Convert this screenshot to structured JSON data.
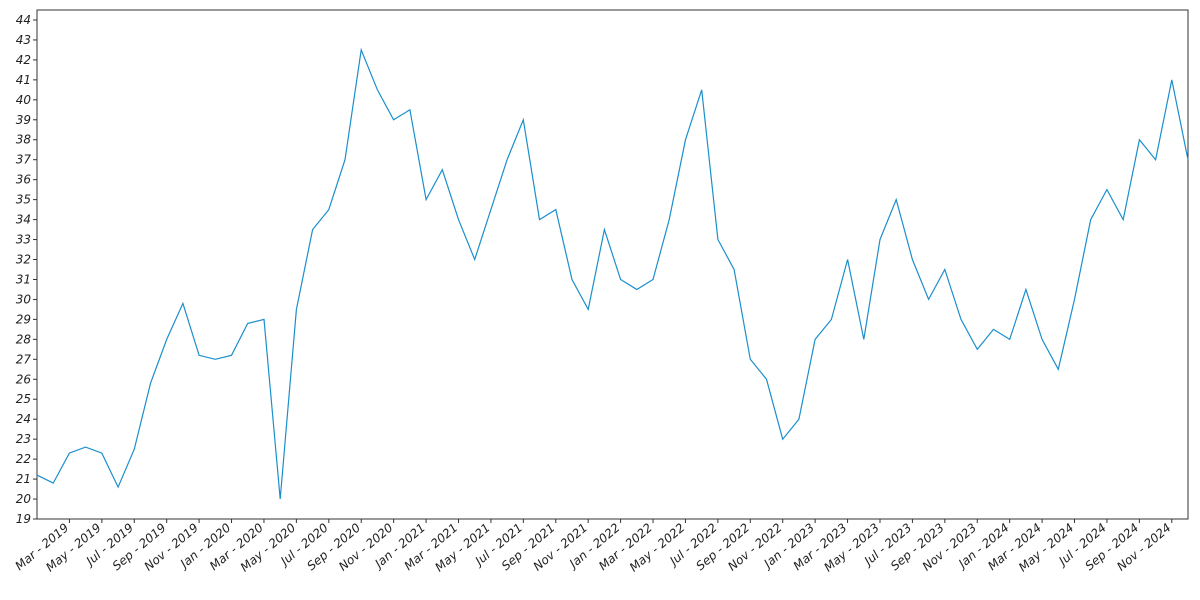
{
  "chart_data": {
    "type": "line",
    "x": [
      "2019-01",
      "2019-02",
      "2019-03",
      "2019-04",
      "2019-05",
      "2019-06",
      "2019-07",
      "2019-08",
      "2019-09",
      "2019-10",
      "2019-11",
      "2019-12",
      "2020-01",
      "2020-02",
      "2020-03",
      "2020-04",
      "2020-05",
      "2020-06",
      "2020-07",
      "2020-08",
      "2020-09",
      "2020-10",
      "2020-11",
      "2020-12",
      "2021-01",
      "2021-02",
      "2021-03",
      "2021-04",
      "2021-05",
      "2021-06",
      "2021-07",
      "2021-08",
      "2021-09",
      "2021-10",
      "2021-11",
      "2021-12",
      "2022-01",
      "2022-02",
      "2022-03",
      "2022-04",
      "2022-05",
      "2022-06",
      "2022-07",
      "2022-08",
      "2022-09",
      "2022-10",
      "2022-11",
      "2022-12",
      "2023-01",
      "2023-02",
      "2023-03",
      "2023-04",
      "2023-05",
      "2023-06",
      "2023-07",
      "2023-08",
      "2023-09",
      "2023-10",
      "2023-11",
      "2023-12",
      "2024-01",
      "2024-02",
      "2024-03",
      "2024-04",
      "2024-05",
      "2024-06",
      "2024-07",
      "2024-08",
      "2024-09",
      "2024-10",
      "2024-11",
      "2024-12"
    ],
    "series": [
      {
        "color": "#1a8fcc",
        "values": [
          21.2,
          20.8,
          22.3,
          22.6,
          22.3,
          20.6,
          22.5,
          25.8,
          28.0,
          29.8,
          27.2,
          27.0,
          27.2,
          28.8,
          29.0,
          20.0,
          29.5,
          33.5,
          34.5,
          37.0,
          42.5,
          40.5,
          39.0,
          39.5,
          35.0,
          36.5,
          34.0,
          32.0,
          34.5,
          37.0,
          39.0,
          34.0,
          34.5,
          31.0,
          29.5,
          33.5,
          31.0,
          30.5,
          31.0,
          34.0,
          38.0,
          40.5,
          33.0,
          31.5,
          27.0,
          26.0,
          23.0,
          24.0,
          28.0,
          29.0,
          32.0,
          28.0,
          33.0,
          35.0,
          32.0,
          30.0,
          31.5,
          29.0,
          27.5,
          28.5,
          28.0,
          30.5,
          28.0,
          26.5,
          30.0,
          34.0,
          35.5,
          34.0,
          38.0,
          37.0,
          41.0,
          37.0
        ]
      }
    ],
    "xlim": [
      "2019-01",
      "2024-12"
    ],
    "xticks": [
      {
        "value": "2019-03",
        "label": "Mar - 2019"
      },
      {
        "value": "2019-05",
        "label": "May - 2019"
      },
      {
        "value": "2019-07",
        "label": "Jul - 2019"
      },
      {
        "value": "2019-09",
        "label": "Sep - 2019"
      },
      {
        "value": "2019-11",
        "label": "Nov - 2019"
      },
      {
        "value": "2020-01",
        "label": "Jan - 2020"
      },
      {
        "value": "2020-03",
        "label": "Mar - 2020"
      },
      {
        "value": "2020-05",
        "label": "May - 2020"
      },
      {
        "value": "2020-07",
        "label": "Jul - 2020"
      },
      {
        "value": "2020-09",
        "label": "Sep - 2020"
      },
      {
        "value": "2020-11",
        "label": "Nov - 2020"
      },
      {
        "value": "2021-01",
        "label": "Jan - 2021"
      },
      {
        "value": "2021-03",
        "label": "Mar - 2021"
      },
      {
        "value": "2021-05",
        "label": "May - 2021"
      },
      {
        "value": "2021-07",
        "label": "Jul - 2021"
      },
      {
        "value": "2021-09",
        "label": "Sep - 2021"
      },
      {
        "value": "2021-11",
        "label": "Nov - 2021"
      },
      {
        "value": "2022-01",
        "label": "Jan - 2022"
      },
      {
        "value": "2022-03",
        "label": "Mar - 2022"
      },
      {
        "value": "2022-05",
        "label": "May - 2022"
      },
      {
        "value": "2022-07",
        "label": "Jul - 2022"
      },
      {
        "value": "2022-09",
        "label": "Sep - 2022"
      },
      {
        "value": "2022-11",
        "label": "Nov - 2022"
      },
      {
        "value": "2023-01",
        "label": "Jan - 2023"
      },
      {
        "value": "2023-03",
        "label": "Mar - 2023"
      },
      {
        "value": "2023-05",
        "label": "May - 2023"
      },
      {
        "value": "2023-07",
        "label": "Jul - 2023"
      },
      {
        "value": "2023-09",
        "label": "Sep - 2023"
      },
      {
        "value": "2023-11",
        "label": "Nov - 2023"
      },
      {
        "value": "2024-01",
        "label": "Jan - 2024"
      },
      {
        "value": "2024-03",
        "label": "Mar - 2024"
      },
      {
        "value": "2024-05",
        "label": "May - 2024"
      },
      {
        "value": "2024-07",
        "label": "Jul - 2024"
      },
      {
        "value": "2024-09",
        "label": "Sep - 2024"
      },
      {
        "value": "2024-11",
        "label": "Nov - 2024"
      }
    ],
    "ylim": [
      19,
      44.5
    ],
    "yticks": [
      19,
      20,
      21,
      22,
      23,
      24,
      25,
      26,
      27,
      28,
      29,
      30,
      31,
      32,
      33,
      34,
      35,
      36,
      37,
      38,
      39,
      40,
      41,
      42,
      43,
      44
    ]
  }
}
